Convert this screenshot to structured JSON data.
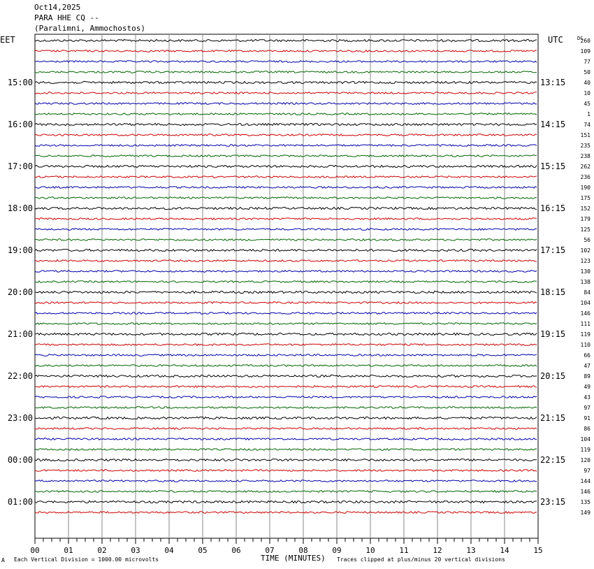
{
  "header": {
    "date": "Oct14,2025",
    "station": "PARA HHE CQ --",
    "location": "(Paralimni, Ammochostos)"
  },
  "left_tz": "EET",
  "right_tz": "UTC",
  "dc_label": "DC",
  "footer": {
    "corner": "A",
    "scale_note": "Each Vertical Division = 1000.00 microvolts",
    "clip_note": "Traces clipped at plus/minus 20 vertical divisions"
  },
  "colors": {
    "black": "#000000",
    "red": "#cc0000",
    "blue": "#0000aa",
    "green": "#006600",
    "grid": "#888888"
  },
  "chart_data": {
    "type": "line",
    "title": "PARA HHE CQ --",
    "xlabel": "TIME (MINUTES)",
    "ylabel": "",
    "x_ticks": [
      "00",
      "01",
      "02",
      "03",
      "04",
      "05",
      "06",
      "07",
      "08",
      "09",
      "10",
      "11",
      "12",
      "13",
      "14",
      "15"
    ],
    "xlim": [
      0,
      15
    ],
    "trace_colors": [
      "black",
      "red",
      "blue",
      "green"
    ],
    "left_time_labels": [
      "15:00",
      "16:00",
      "17:00",
      "18:00",
      "19:00",
      "20:00",
      "21:00",
      "22:00",
      "23:00",
      "00:00",
      "01:00"
    ],
    "right_time_labels": [
      "13:15",
      "14:15",
      "15:15",
      "16:15",
      "17:15",
      "18:15",
      "19:15",
      "20:15",
      "21:15",
      "22:15",
      "23:15"
    ],
    "dc_offsets": [
      "260",
      "109",
      "77",
      "50",
      "40",
      "10",
      "45",
      "1",
      "74",
      "151",
      "235",
      "238",
      "262",
      "236",
      "190",
      "175",
      "152",
      "179",
      "125",
      "56",
      "102",
      "123",
      "130",
      "138",
      "84",
      "104",
      "146",
      "111",
      "119",
      "110",
      "66",
      "47",
      "89",
      "49",
      "43",
      "97",
      "91",
      "86",
      "104",
      "119",
      "120",
      "97",
      "144",
      "146",
      "135",
      "149"
    ]
  }
}
